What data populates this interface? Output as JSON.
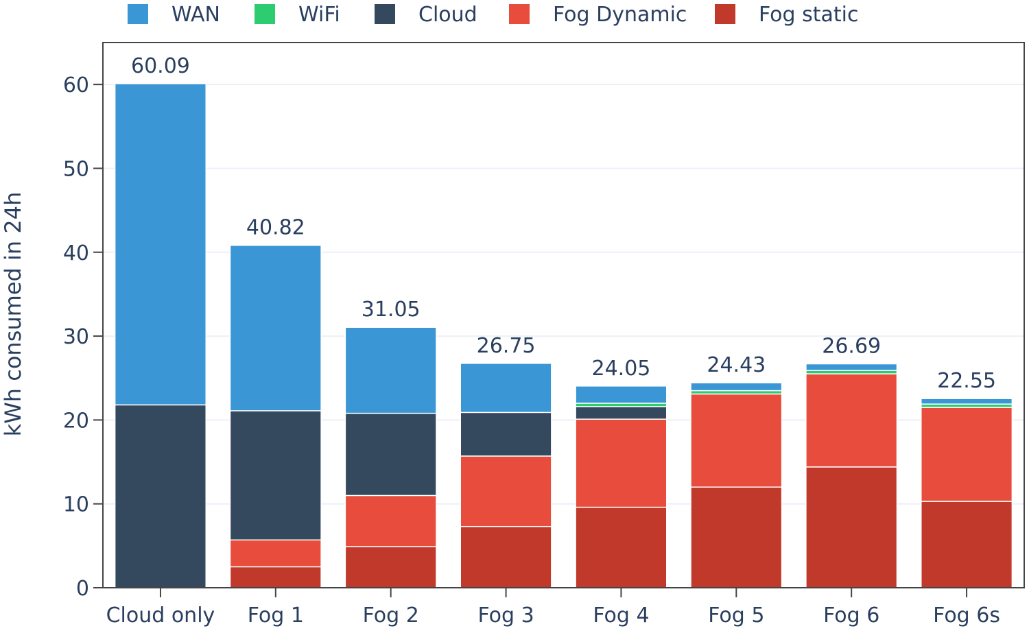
{
  "chart_data": {
    "type": "bar",
    "stacked": true,
    "categories": [
      "Cloud only",
      "Fog 1",
      "Fog 2",
      "Fog 3",
      "Fog 4",
      "Fog 5",
      "Fog 6",
      "Fog 6s"
    ],
    "series": [
      {
        "name": "Fog static",
        "color": "#c0392b",
        "values": [
          0,
          2.5,
          4.9,
          7.3,
          9.6,
          12.0,
          14.4,
          10.3
        ]
      },
      {
        "name": "Fog Dynamic",
        "color": "#e74c3c",
        "values": [
          0,
          3.2,
          6.1,
          8.4,
          10.5,
          11.1,
          11.1,
          11.2
        ]
      },
      {
        "name": "Cloud",
        "color": "#34495e",
        "values": [
          21.8,
          15.4,
          9.8,
          5.2,
          1.5,
          0,
          0,
          0
        ]
      },
      {
        "name": "WiFi",
        "color": "#2ecc71",
        "values": [
          0,
          0,
          0,
          0,
          0.4,
          0.4,
          0.4,
          0.4
        ]
      },
      {
        "name": "WAN",
        "color": "#3a96d4",
        "values": [
          38.29,
          19.72,
          10.25,
          5.85,
          2.05,
          0.93,
          0.79,
          0.65
        ]
      }
    ],
    "totals": [
      60.09,
      40.82,
      31.05,
      26.75,
      24.05,
      24.43,
      26.69,
      22.55
    ],
    "total_labels": [
      "60.09",
      "40.82",
      "31.05",
      "26.75",
      "24.05",
      "24.43",
      "26.69",
      "22.55"
    ],
    "legend_order": [
      "WAN",
      "WiFi",
      "Cloud",
      "Fog Dynamic",
      "Fog static"
    ],
    "legend_position": "top",
    "ylabel": "kWh consumed in 24h",
    "xlabel": "",
    "title": "",
    "ylim": [
      0,
      65
    ],
    "yticks": [
      0,
      10,
      20,
      30,
      40,
      50,
      60
    ],
    "grid": true
  }
}
